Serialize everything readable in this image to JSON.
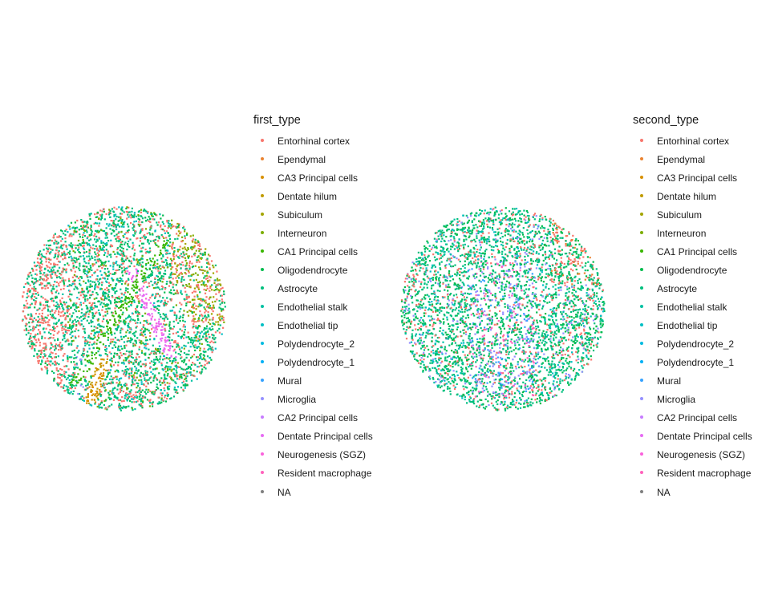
{
  "chart_data": [
    {
      "type": "scatter",
      "legend_title": "first_type",
      "legend_position": "right",
      "grid": false,
      "axes": "none",
      "categories": [
        {
          "name": "Entorhinal cortex",
          "color": "#F8766D"
        },
        {
          "name": "Ependymal",
          "color": "#EA8331"
        },
        {
          "name": "CA3 Principal cells",
          "color": "#D89000"
        },
        {
          "name": "Dentate hilum",
          "color": "#C09B00"
        },
        {
          "name": "Subiculum",
          "color": "#A3A500"
        },
        {
          "name": "Interneuron",
          "color": "#7CAE00"
        },
        {
          "name": "CA1 Principal cells",
          "color": "#39B600"
        },
        {
          "name": "Oligodendrocyte",
          "color": "#00BB4E"
        },
        {
          "name": "Astrocyte",
          "color": "#00BF7D"
        },
        {
          "name": "Endothelial stalk",
          "color": "#00C1A3"
        },
        {
          "name": "Endothelial tip",
          "color": "#00BFC4"
        },
        {
          "name": "Polydendrocyte_2",
          "color": "#00BAE0"
        },
        {
          "name": "Polydendrocyte_1",
          "color": "#00B0F6"
        },
        {
          "name": "Mural",
          "color": "#35A2FF"
        },
        {
          "name": "Microglia",
          "color": "#9590FF"
        },
        {
          "name": "CA2 Principal cells",
          "color": "#C77CFF"
        },
        {
          "name": "Dentate Principal cells",
          "color": "#E76BF3"
        },
        {
          "name": "Neurogenesis (SGZ)",
          "color": "#FA62DB"
        },
        {
          "name": "Resident macrophage",
          "color": "#FF62BC"
        },
        {
          "name": "NA",
          "color": "#7F7F7F"
        }
      ]
    },
    {
      "type": "scatter",
      "legend_title": "second_type",
      "legend_position": "right",
      "grid": false,
      "axes": "none",
      "categories": [
        {
          "name": "Entorhinal cortex",
          "color": "#F8766D"
        },
        {
          "name": "Ependymal",
          "color": "#EA8331"
        },
        {
          "name": "CA3 Principal cells",
          "color": "#D89000"
        },
        {
          "name": "Dentate hilum",
          "color": "#C09B00"
        },
        {
          "name": "Subiculum",
          "color": "#A3A500"
        },
        {
          "name": "Interneuron",
          "color": "#7CAE00"
        },
        {
          "name": "CA1 Principal cells",
          "color": "#39B600"
        },
        {
          "name": "Oligodendrocyte",
          "color": "#00BB4E"
        },
        {
          "name": "Astrocyte",
          "color": "#00BF7D"
        },
        {
          "name": "Endothelial stalk",
          "color": "#00C1A3"
        },
        {
          "name": "Endothelial tip",
          "color": "#00BFC4"
        },
        {
          "name": "Polydendrocyte_2",
          "color": "#00BAE0"
        },
        {
          "name": "Polydendrocyte_1",
          "color": "#00B0F6"
        },
        {
          "name": "Mural",
          "color": "#35A2FF"
        },
        {
          "name": "Microglia",
          "color": "#9590FF"
        },
        {
          "name": "CA2 Principal cells",
          "color": "#C77CFF"
        },
        {
          "name": "Dentate Principal cells",
          "color": "#E76BF3"
        },
        {
          "name": "Neurogenesis (SGZ)",
          "color": "#FA62DB"
        },
        {
          "name": "Resident macrophage",
          "color": "#FF62BC"
        },
        {
          "name": "NA",
          "color": "#7F7F7F"
        }
      ]
    }
  ]
}
